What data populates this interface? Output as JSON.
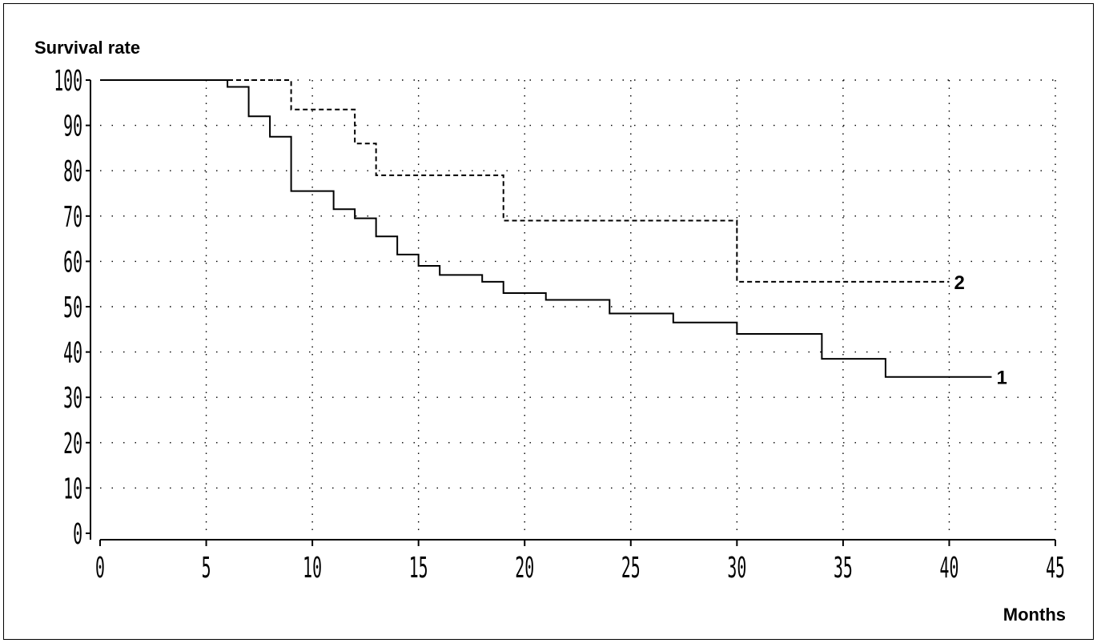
{
  "chart_data": {
    "type": "line",
    "title": "",
    "xlabel": "Months",
    "ylabel": "Survival rate",
    "xlim": [
      0,
      45
    ],
    "ylim": [
      0,
      100
    ],
    "x_ticks": [
      0,
      5,
      10,
      15,
      20,
      25,
      30,
      35,
      40,
      45
    ],
    "y_ticks": [
      0,
      10,
      20,
      30,
      40,
      50,
      60,
      70,
      80,
      90,
      100
    ],
    "x_tick_labels": [
      "0",
      "5",
      "10",
      "15",
      "20",
      "25",
      "30",
      "35",
      "40",
      "45"
    ],
    "y_tick_labels": [
      "0",
      "10",
      "20",
      "30",
      "40",
      "50",
      "60",
      "70",
      "80",
      "90",
      "100"
    ],
    "grid": true,
    "series": [
      {
        "name": "1",
        "style": "solid",
        "color": "#000000",
        "steps": [
          [
            0,
            100
          ],
          [
            6,
            98.5
          ],
          [
            7,
            92
          ],
          [
            8,
            87.5
          ],
          [
            9,
            75.5
          ],
          [
            11,
            71.5
          ],
          [
            12,
            69.5
          ],
          [
            13,
            65.5
          ],
          [
            14,
            61.5
          ],
          [
            15,
            59
          ],
          [
            16,
            57
          ],
          [
            18,
            55.5
          ],
          [
            19,
            53
          ],
          [
            21,
            51.5
          ],
          [
            24,
            48.5
          ],
          [
            27,
            46.5
          ],
          [
            30,
            44
          ],
          [
            34,
            38.5
          ],
          [
            37,
            34.5
          ],
          [
            42,
            34.5
          ]
        ]
      },
      {
        "name": "2",
        "style": "dashed",
        "color": "#000000",
        "steps": [
          [
            0,
            100
          ],
          [
            9,
            93.5
          ],
          [
            12,
            86
          ],
          [
            13,
            79
          ],
          [
            19,
            69
          ],
          [
            30,
            55.5
          ],
          [
            40,
            55.5
          ]
        ]
      }
    ]
  }
}
